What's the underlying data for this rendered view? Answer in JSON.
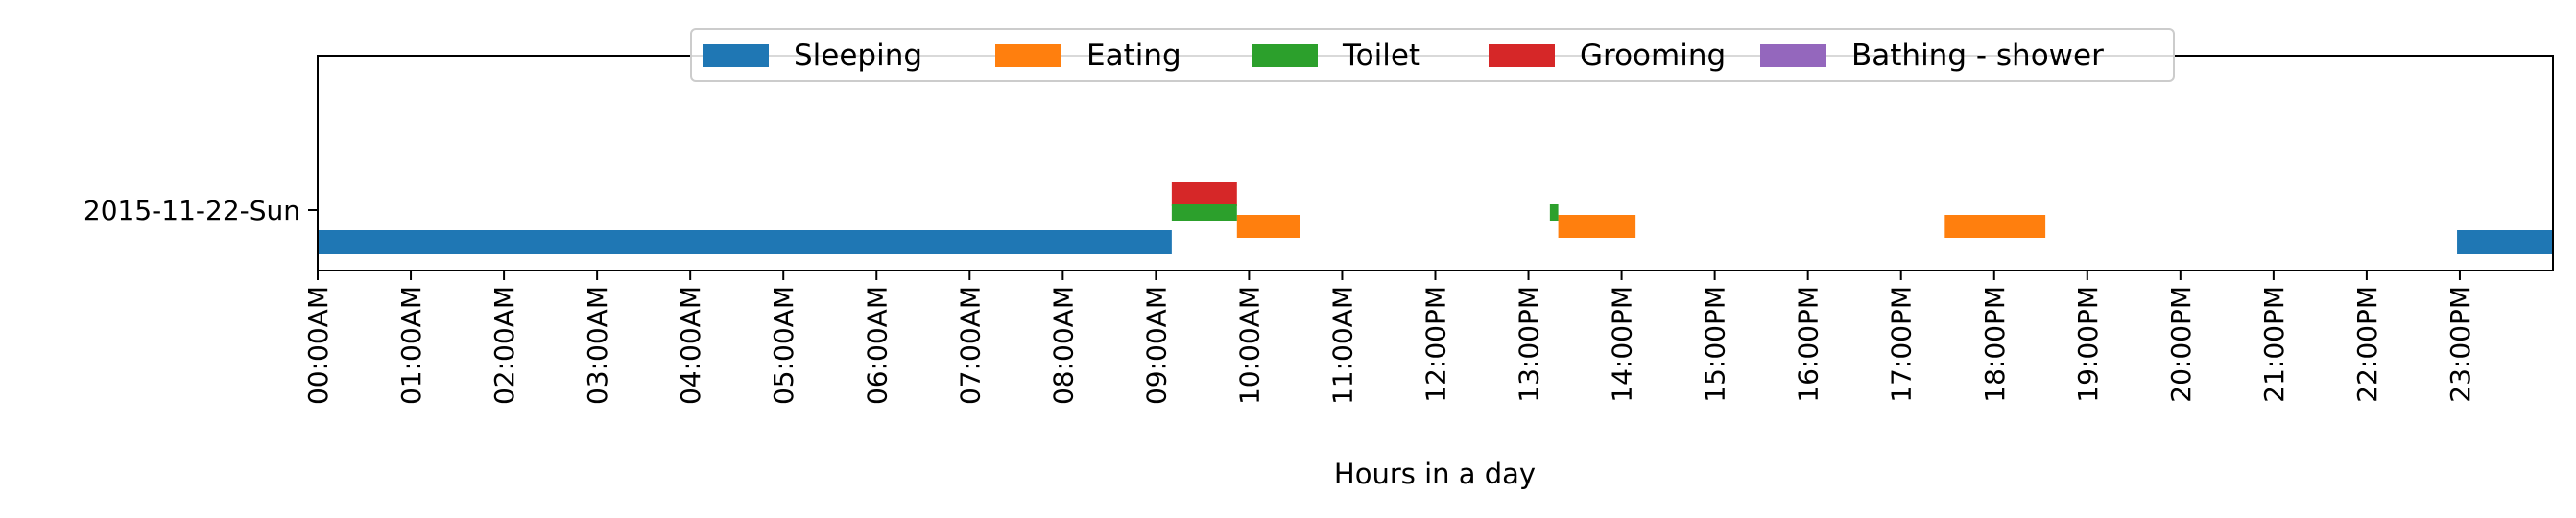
{
  "chart_data": {
    "type": "timeline",
    "title": "",
    "xlabel": "Hours in a day",
    "ylabel": "",
    "xlim": [
      0,
      24
    ],
    "grid": false,
    "legend_position": "top-center",
    "day_label": "2015-11-22-Sun",
    "x_tick_labels": [
      "00:00AM",
      "01:00AM",
      "02:00AM",
      "03:00AM",
      "04:00AM",
      "05:00AM",
      "06:00AM",
      "07:00AM",
      "08:00AM",
      "09:00AM",
      "10:00AM",
      "11:00AM",
      "12:00PM",
      "13:00PM",
      "14:00PM",
      "15:00PM",
      "16:00PM",
      "17:00PM",
      "18:00PM",
      "19:00PM",
      "20:00PM",
      "21:00PM",
      "22:00PM",
      "23:00PM"
    ],
    "series": [
      {
        "name": "Sleeping",
        "color": "#1f77b4",
        "intervals": [
          [
            0.0,
            9.17
          ],
          [
            22.97,
            24.0
          ]
        ]
      },
      {
        "name": "Eating",
        "color": "#ff7f0e",
        "intervals": [
          [
            9.87,
            10.55
          ],
          [
            13.32,
            14.15
          ],
          [
            17.47,
            18.55
          ]
        ]
      },
      {
        "name": "Toilet",
        "color": "#2ca02c",
        "intervals": [
          [
            9.17,
            9.87
          ],
          [
            13.23,
            13.32
          ]
        ]
      },
      {
        "name": "Grooming",
        "color": "#d62728",
        "intervals": [
          [
            9.17,
            9.87
          ]
        ]
      },
      {
        "name": "Bathing - shower",
        "color": "#9467bd",
        "intervals": []
      }
    ]
  }
}
